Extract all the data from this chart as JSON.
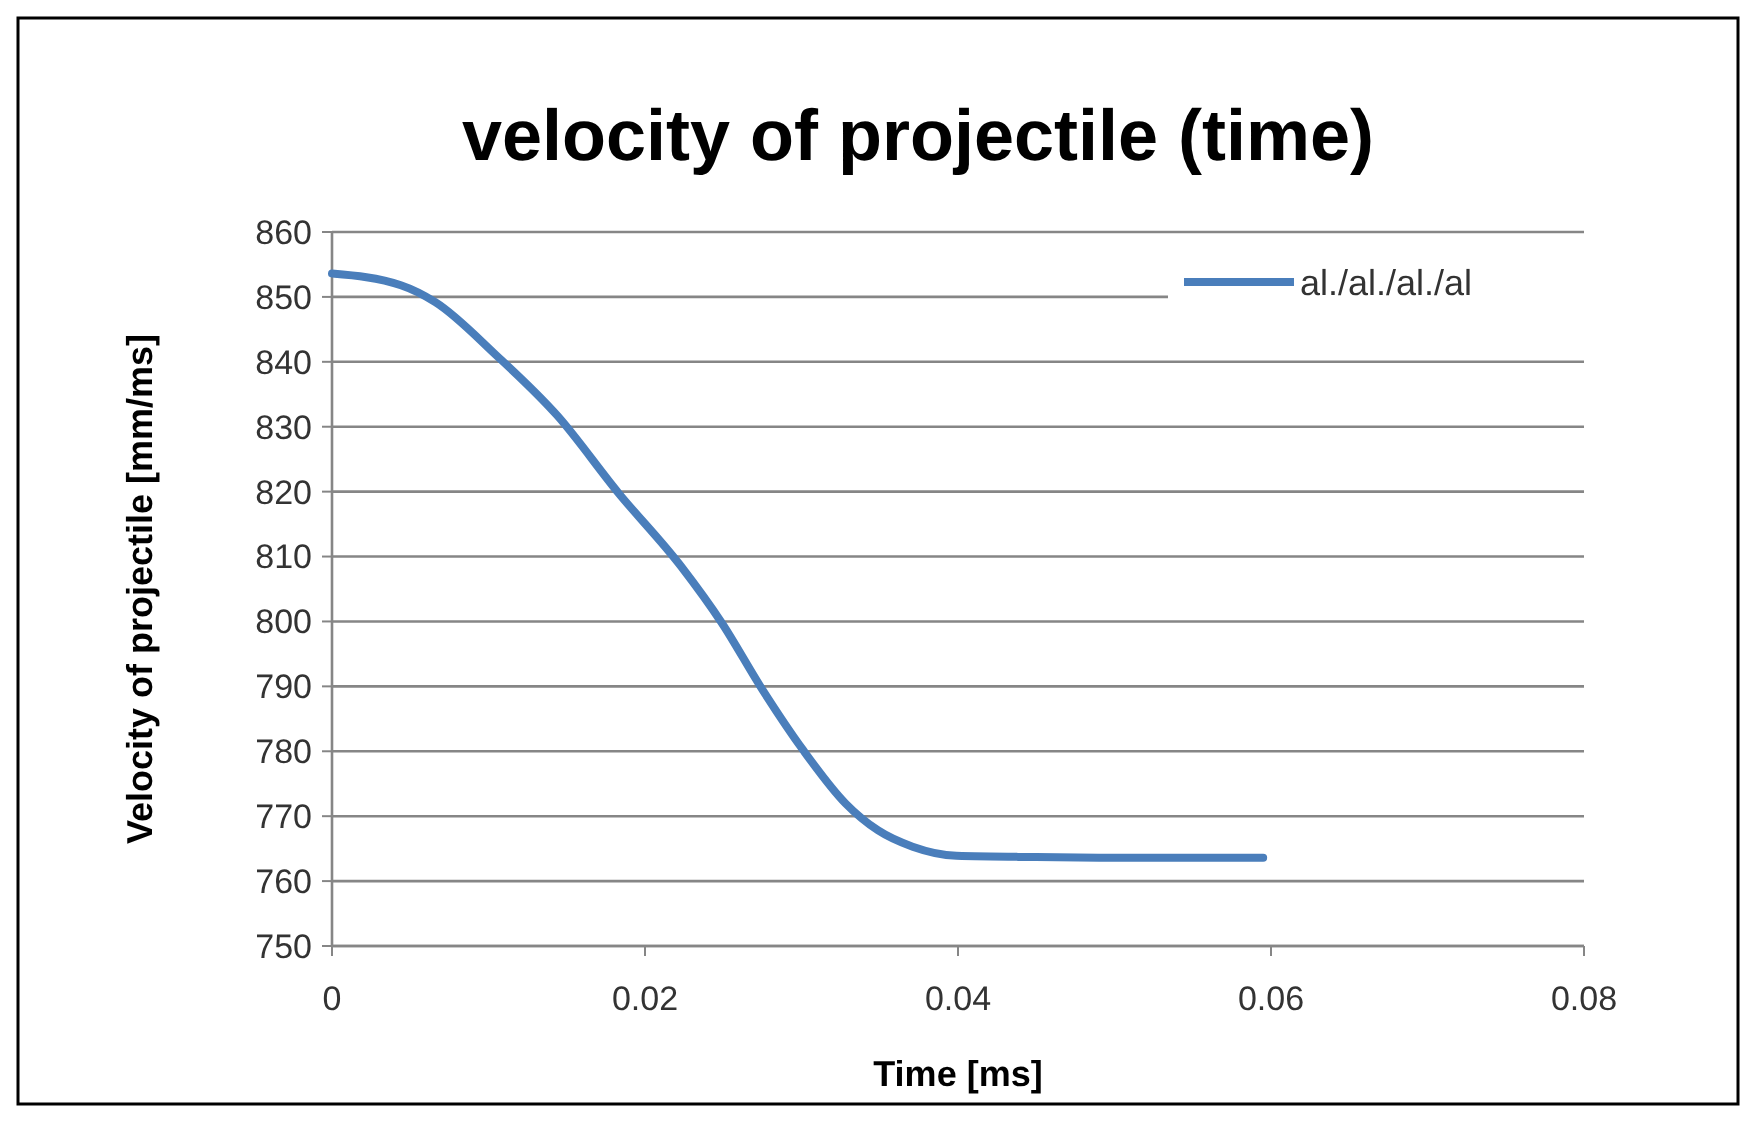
{
  "chart_data": {
    "type": "line",
    "title": "velocity of projectile (time)",
    "xlabel": "Time [ms]",
    "ylabel": "Velocity of projectile [mm/ms]",
    "xlim": [
      0,
      0.08
    ],
    "xticks": [
      0,
      0.02,
      0.04,
      0.06,
      0.08
    ],
    "ylim": [
      750,
      860
    ],
    "yticks": [
      750,
      760,
      770,
      780,
      790,
      800,
      810,
      820,
      830,
      840,
      850,
      860
    ],
    "grid": "y",
    "legend": "top right",
    "marker": "none",
    "line_style": "solid",
    "series": [
      {
        "name": "al./al./al./al",
        "color": "#4a7ebb",
        "x": [
          0,
          0.0044,
          0.0066,
          0.0105,
          0.0144,
          0.0183,
          0.0223,
          0.0249,
          0.0275,
          0.0301,
          0.0328,
          0.0349,
          0.0371,
          0.0399,
          0.045,
          0.05,
          0.055,
          0.0595
        ],
        "values": [
          853.6,
          851.8,
          849.2,
          841,
          831.7,
          819.8,
          808.5,
          799.8,
          789.5,
          780.2,
          772,
          767.8,
          765.3,
          763.9,
          763.7,
          763.6,
          763.6,
          763.6
        ]
      }
    ]
  }
}
